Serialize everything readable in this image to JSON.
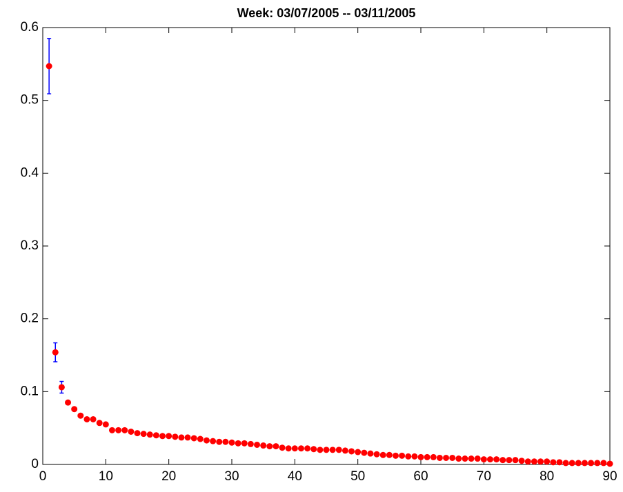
{
  "chart_data": {
    "type": "scatter",
    "title": "Week: 03/07/2005 -- 03/11/2005",
    "x": [
      1,
      2,
      3,
      4,
      5,
      6,
      7,
      8,
      9,
      10,
      11,
      12,
      13,
      14,
      15,
      16,
      17,
      18,
      19,
      20,
      21,
      22,
      23,
      24,
      25,
      26,
      27,
      28,
      29,
      30,
      31,
      32,
      33,
      34,
      35,
      36,
      37,
      38,
      39,
      40,
      41,
      42,
      43,
      44,
      45,
      46,
      47,
      48,
      49,
      50,
      51,
      52,
      53,
      54,
      55,
      56,
      57,
      58,
      59,
      60,
      61,
      62,
      63,
      64,
      65,
      66,
      67,
      68,
      69,
      70,
      71,
      72,
      73,
      74,
      75,
      76,
      77,
      78,
      79,
      80,
      81,
      82,
      83,
      84,
      85,
      86,
      87,
      88,
      89,
      90
    ],
    "values": [
      0.547,
      0.154,
      0.106,
      0.085,
      0.076,
      0.067,
      0.062,
      0.062,
      0.057,
      0.055,
      0.047,
      0.047,
      0.047,
      0.045,
      0.043,
      0.042,
      0.041,
      0.04,
      0.039,
      0.039,
      0.038,
      0.037,
      0.037,
      0.036,
      0.035,
      0.033,
      0.032,
      0.031,
      0.031,
      0.03,
      0.029,
      0.029,
      0.028,
      0.027,
      0.026,
      0.025,
      0.025,
      0.023,
      0.022,
      0.022,
      0.022,
      0.022,
      0.021,
      0.02,
      0.02,
      0.02,
      0.02,
      0.019,
      0.018,
      0.017,
      0.016,
      0.015,
      0.014,
      0.013,
      0.013,
      0.012,
      0.012,
      0.011,
      0.011,
      0.01,
      0.01,
      0.01,
      0.009,
      0.009,
      0.009,
      0.008,
      0.008,
      0.008,
      0.008,
      0.007,
      0.007,
      0.007,
      0.006,
      0.006,
      0.006,
      0.005,
      0.004,
      0.004,
      0.004,
      0.004,
      0.003,
      0.003,
      0.002,
      0.002,
      0.002,
      0.002,
      0.002,
      0.002,
      0.002,
      0.001
    ],
    "errors": [
      0.038,
      0.013,
      0.008,
      null,
      null,
      null,
      null,
      null,
      null,
      null,
      null,
      null,
      null,
      null,
      null,
      null,
      null,
      null,
      null,
      null,
      null,
      null,
      null,
      null,
      null,
      null,
      null,
      null,
      null,
      null,
      null,
      null,
      null,
      null,
      null,
      null,
      null,
      null,
      null,
      null,
      null,
      null,
      null,
      null,
      null,
      null,
      null,
      null,
      null,
      null,
      null,
      null,
      null,
      null,
      null,
      null,
      null,
      null,
      null,
      null,
      null,
      null,
      null,
      null,
      null,
      null,
      null,
      null,
      null,
      null,
      null,
      null,
      null,
      null,
      null,
      null,
      null,
      null,
      null,
      null,
      null,
      null,
      null,
      null,
      null,
      null,
      null,
      null,
      null,
      null
    ],
    "color": "#ff0000",
    "error_color": "#0000ff",
    "xlim": [
      0,
      90
    ],
    "ylim": [
      0,
      0.6
    ],
    "xticks": [
      0,
      10,
      20,
      30,
      40,
      50,
      60,
      70,
      80,
      90
    ],
    "yticks": [
      0,
      0.1,
      0.2,
      0.3,
      0.4,
      0.5,
      0.6
    ]
  }
}
